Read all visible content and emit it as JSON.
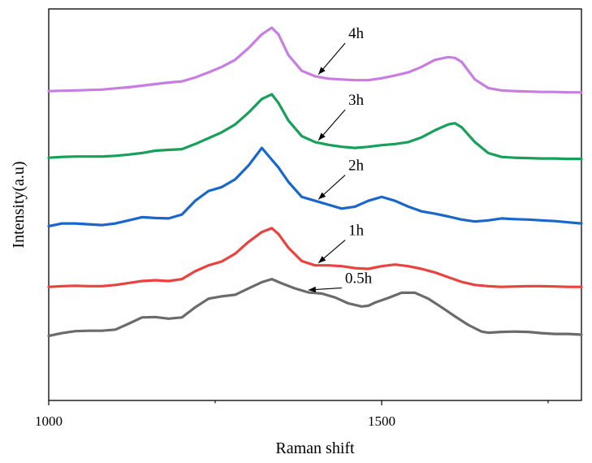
{
  "chart_data": {
    "type": "line",
    "title": "",
    "xlabel": "Raman shift",
    "ylabel": "Intensity(a.u)",
    "xlim": [
      1000,
      1800
    ],
    "ylim": [
      0,
      1
    ],
    "xticks": [
      1000,
      1500
    ],
    "xtick_labels": [
      "1000",
      "1500"
    ],
    "minor_xticks": [
      1250,
      1750
    ],
    "yticks_shown": false,
    "series": [
      {
        "name": "0.5h",
        "color": "#6b6b6b",
        "x": [
          1000,
          1020,
          1040,
          1060,
          1080,
          1100,
          1120,
          1140,
          1160,
          1180,
          1200,
          1220,
          1240,
          1260,
          1280,
          1300,
          1320,
          1335,
          1350,
          1370,
          1390,
          1410,
          1430,
          1450,
          1470,
          1480,
          1490,
          1510,
          1530,
          1550,
          1570,
          1590,
          1610,
          1630,
          1650,
          1660,
          1680,
          1700,
          1720,
          1740,
          1760,
          1780,
          1800
        ],
        "y": [
          0.165,
          0.172,
          0.177,
          0.178,
          0.178,
          0.181,
          0.196,
          0.212,
          0.213,
          0.209,
          0.212,
          0.238,
          0.26,
          0.266,
          0.27,
          0.286,
          0.302,
          0.31,
          0.299,
          0.286,
          0.276,
          0.273,
          0.263,
          0.248,
          0.24,
          0.242,
          0.25,
          0.262,
          0.275,
          0.275,
          0.26,
          0.238,
          0.215,
          0.193,
          0.176,
          0.173,
          0.175,
          0.176,
          0.175,
          0.172,
          0.17,
          0.17,
          0.168
        ]
      },
      {
        "name": "1h",
        "color": "#e8433f",
        "x": [
          1000,
          1020,
          1040,
          1060,
          1080,
          1100,
          1120,
          1140,
          1160,
          1180,
          1200,
          1220,
          1240,
          1260,
          1280,
          1300,
          1320,
          1335,
          1345,
          1360,
          1380,
          1400,
          1420,
          1440,
          1460,
          1480,
          1500,
          1520,
          1540,
          1560,
          1580,
          1600,
          1620,
          1640,
          1660,
          1680,
          1700,
          1720,
          1740,
          1760,
          1780,
          1800
        ],
        "y": [
          0.29,
          0.292,
          0.293,
          0.292,
          0.292,
          0.295,
          0.3,
          0.305,
          0.307,
          0.305,
          0.31,
          0.33,
          0.345,
          0.355,
          0.375,
          0.405,
          0.43,
          0.44,
          0.425,
          0.39,
          0.356,
          0.345,
          0.345,
          0.343,
          0.338,
          0.336,
          0.343,
          0.347,
          0.343,
          0.336,
          0.327,
          0.315,
          0.303,
          0.295,
          0.292,
          0.29,
          0.291,
          0.292,
          0.292,
          0.291,
          0.29,
          0.29
        ]
      },
      {
        "name": "2h",
        "color": "#1a67cc",
        "x": [
          1000,
          1020,
          1040,
          1060,
          1080,
          1100,
          1120,
          1140,
          1160,
          1180,
          1200,
          1220,
          1240,
          1260,
          1280,
          1300,
          1320,
          1335,
          1345,
          1360,
          1380,
          1400,
          1420,
          1440,
          1460,
          1480,
          1500,
          1520,
          1540,
          1560,
          1580,
          1600,
          1620,
          1640,
          1660,
          1680,
          1700,
          1720,
          1740,
          1760,
          1780,
          1800
        ],
        "y": [
          0.445,
          0.452,
          0.452,
          0.45,
          0.448,
          0.452,
          0.46,
          0.468,
          0.466,
          0.465,
          0.475,
          0.51,
          0.535,
          0.545,
          0.565,
          0.6,
          0.645,
          0.615,
          0.595,
          0.558,
          0.52,
          0.51,
          0.5,
          0.49,
          0.495,
          0.51,
          0.52,
          0.51,
          0.495,
          0.483,
          0.477,
          0.47,
          0.462,
          0.457,
          0.46,
          0.465,
          0.463,
          0.462,
          0.46,
          0.458,
          0.455,
          0.452
        ]
      },
      {
        "name": "3h",
        "color": "#18a05a",
        "x": [
          1000,
          1020,
          1040,
          1060,
          1080,
          1100,
          1120,
          1140,
          1160,
          1180,
          1200,
          1220,
          1240,
          1260,
          1280,
          1300,
          1320,
          1335,
          1345,
          1360,
          1380,
          1400,
          1420,
          1440,
          1460,
          1480,
          1500,
          1520,
          1540,
          1560,
          1580,
          1600,
          1610,
          1620,
          1640,
          1660,
          1680,
          1700,
          1720,
          1740,
          1760,
          1780,
          1800
        ],
        "y": [
          0.62,
          0.622,
          0.623,
          0.623,
          0.623,
          0.625,
          0.628,
          0.632,
          0.638,
          0.64,
          0.642,
          0.655,
          0.67,
          0.685,
          0.705,
          0.735,
          0.77,
          0.782,
          0.76,
          0.715,
          0.675,
          0.66,
          0.653,
          0.648,
          0.645,
          0.648,
          0.652,
          0.655,
          0.66,
          0.672,
          0.69,
          0.705,
          0.708,
          0.698,
          0.66,
          0.632,
          0.622,
          0.62,
          0.619,
          0.618,
          0.618,
          0.617,
          0.617
        ]
      },
      {
        "name": "4h",
        "color": "#c77ee0",
        "x": [
          1000,
          1020,
          1040,
          1060,
          1080,
          1100,
          1120,
          1140,
          1160,
          1180,
          1200,
          1220,
          1240,
          1260,
          1280,
          1300,
          1320,
          1335,
          1345,
          1360,
          1380,
          1400,
          1420,
          1440,
          1460,
          1480,
          1500,
          1520,
          1540,
          1560,
          1580,
          1600,
          1610,
          1620,
          1640,
          1660,
          1680,
          1700,
          1720,
          1740,
          1760,
          1780,
          1800
        ],
        "y": [
          0.79,
          0.791,
          0.792,
          0.793,
          0.794,
          0.797,
          0.8,
          0.804,
          0.808,
          0.812,
          0.815,
          0.825,
          0.838,
          0.852,
          0.87,
          0.9,
          0.935,
          0.952,
          0.935,
          0.882,
          0.842,
          0.828,
          0.822,
          0.82,
          0.818,
          0.818,
          0.823,
          0.83,
          0.838,
          0.852,
          0.87,
          0.877,
          0.875,
          0.865,
          0.82,
          0.798,
          0.792,
          0.79,
          0.789,
          0.788,
          0.788,
          0.787,
          0.787
        ]
      }
    ],
    "annotations": [
      {
        "text": "4h",
        "series": "4h",
        "arrow_to_x": 1405,
        "text_x": 1450,
        "text_y": 0.925
      },
      {
        "text": "3h",
        "series": "3h",
        "arrow_to_x": 1405,
        "text_x": 1450,
        "text_y": 0.755
      },
      {
        "text": "2h",
        "series": "2h",
        "arrow_to_x": 1405,
        "text_x": 1450,
        "text_y": 0.588
      },
      {
        "text": "1h",
        "series": "1h",
        "arrow_to_x": 1405,
        "text_x": 1450,
        "text_y": 0.422
      },
      {
        "text": "0.5h",
        "series": "0.5h",
        "arrow_to_x": 1390,
        "text_x": 1445,
        "text_y": 0.3
      }
    ]
  }
}
